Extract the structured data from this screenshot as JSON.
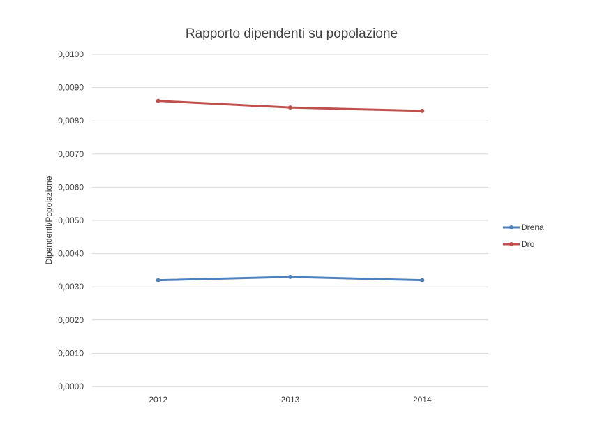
{
  "chart_data": {
    "type": "line",
    "title": "Rapporto dipendenti su popolazione",
    "xlabel": "",
    "ylabel": "Dipendenti/Popolazione",
    "categories": [
      "2012",
      "2013",
      "2014"
    ],
    "ylim": [
      0,
      0.01
    ],
    "yticks": [
      "0,0000",
      "0,0010",
      "0,0020",
      "0,0030",
      "0,0040",
      "0,0050",
      "0,0060",
      "0,0070",
      "0,0080",
      "0,0090",
      "0,0100"
    ],
    "grid": "horizontal",
    "legend_position": "right",
    "series": [
      {
        "name": "Drena",
        "color": "#4f81bd",
        "values": [
          0.0032,
          0.0033,
          0.0032
        ]
      },
      {
        "name": "Dro",
        "color": "#c0504d",
        "values": [
          0.0086,
          0.0084,
          0.0083
        ]
      }
    ]
  }
}
